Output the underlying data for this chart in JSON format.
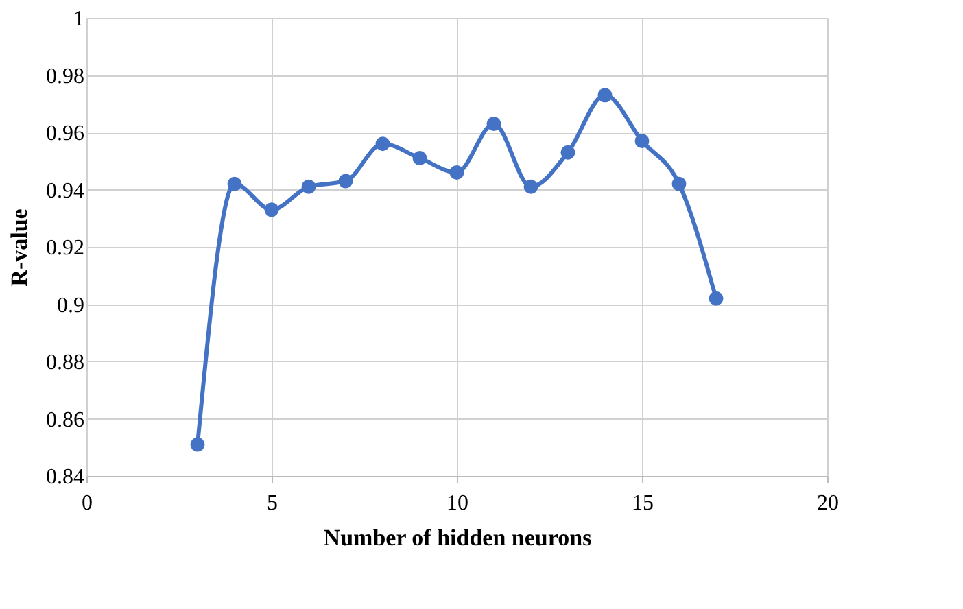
{
  "chart_data": {
    "type": "line",
    "xlabel": "Number of hidden neurons",
    "ylabel": "R-value",
    "x": [
      3,
      4,
      5,
      6,
      7,
      8,
      9,
      10,
      11,
      12,
      13,
      14,
      15,
      16,
      17
    ],
    "series": [
      {
        "color": "#4472c4",
        "values": [
          0.851,
          0.942,
          0.933,
          0.941,
          0.943,
          0.956,
          0.951,
          0.946,
          0.963,
          0.941,
          0.953,
          0.973,
          0.957,
          0.942,
          0.902
        ]
      }
    ],
    "xlim": [
      0,
      20
    ],
    "xticks": [
      0,
      5,
      10,
      15,
      20
    ],
    "ylim": [
      0.84,
      1
    ],
    "yticks": [
      0.84,
      0.86,
      0.88,
      0.9,
      0.92,
      0.94,
      0.96,
      0.98,
      1
    ],
    "grid": true,
    "marker": "circle",
    "line_style": "solid"
  }
}
